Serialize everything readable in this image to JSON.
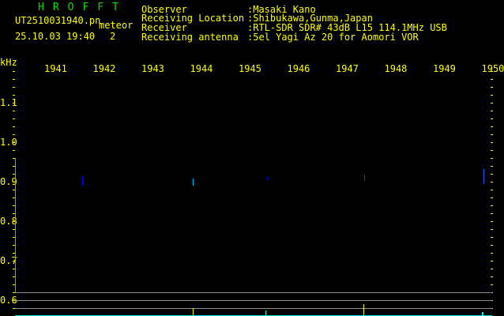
{
  "header": {
    "title": "HROFFT",
    "filename": "UT2510031940.pn",
    "mode": "meteor",
    "datetime": "25.10.03 19:40",
    "count": "2",
    "info": [
      {
        "label": "Observer",
        "value": ":Masaki Kano"
      },
      {
        "label": "Receiving Location",
        "value": ":Shibukawa,Gunma,Japan"
      },
      {
        "label": "Receiver",
        "value": ":RTL-SDR SDR# 43dB L15 114.1MHz USB"
      },
      {
        "label": "Receiving antenna",
        "value": ":5el Yagi Az 20 for Aomori VOR"
      }
    ]
  },
  "axes": {
    "y_unit": "kHz",
    "x_labels": [
      "1941",
      "1942",
      "1943",
      "1944",
      "1945",
      "1946",
      "1947",
      "1948",
      "1949",
      "1950"
    ],
    "y_labels": [
      "1.1",
      "1.0",
      "0.9",
      "0.8",
      "0.7",
      "0.6"
    ]
  },
  "colors": {
    "text": "#ffff00",
    "title": "#00e000",
    "grid": "#909090",
    "signal": "#0000ff",
    "signal_strong": "#00ffff"
  }
}
